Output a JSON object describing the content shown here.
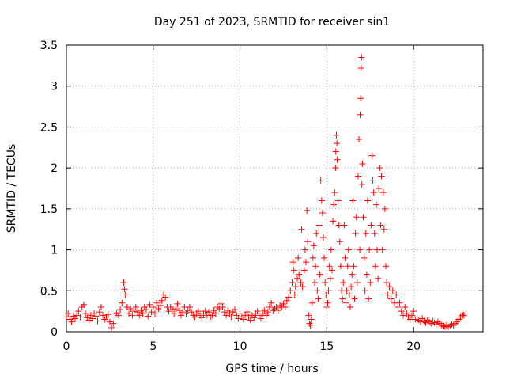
{
  "chart_data": {
    "type": "scatter",
    "title": "Day 251 of 2023, SRMTID for receiver sin1",
    "xlabel": "GPS time / hours",
    "ylabel": "SRMTID / TECUs",
    "xlim": [
      0,
      24
    ],
    "ylim": [
      0,
      3.5
    ],
    "xticks": [
      0,
      5,
      10,
      15,
      20
    ],
    "yticks": [
      0,
      0.5,
      1,
      1.5,
      2,
      2.5,
      3,
      3.5
    ],
    "xtick_labels": [
      "0",
      "5",
      "10",
      "15",
      "20"
    ],
    "ytick_labels": [
      "0",
      "0.5",
      "1",
      "1.5",
      "2",
      "2.5",
      "3",
      "3.5"
    ],
    "grid": true,
    "marker": "+",
    "color": "#ff0000",
    "series": [
      {
        "name": "sin1",
        "points": [
          [
            0.0,
            0.18
          ],
          [
            0.1,
            0.22
          ],
          [
            0.2,
            0.15
          ],
          [
            0.3,
            0.12
          ],
          [
            0.4,
            0.19
          ],
          [
            0.5,
            0.16
          ],
          [
            0.6,
            0.2
          ],
          [
            0.7,
            0.25
          ],
          [
            0.8,
            0.18
          ],
          [
            0.9,
            0.3
          ],
          [
            1.0,
            0.33
          ],
          [
            1.1,
            0.22
          ],
          [
            1.2,
            0.17
          ],
          [
            1.3,
            0.14
          ],
          [
            1.4,
            0.2
          ],
          [
            1.5,
            0.16
          ],
          [
            1.6,
            0.22
          ],
          [
            1.7,
            0.19
          ],
          [
            1.8,
            0.13
          ],
          [
            1.9,
            0.24
          ],
          [
            2.0,
            0.3
          ],
          [
            2.1,
            0.2
          ],
          [
            2.2,
            0.15
          ],
          [
            2.3,
            0.18
          ],
          [
            2.4,
            0.21
          ],
          [
            2.5,
            0.12
          ],
          [
            2.6,
            0.05
          ],
          [
            2.7,
            0.1
          ],
          [
            2.8,
            0.18
          ],
          [
            2.9,
            0.23
          ],
          [
            3.0,
            0.2
          ],
          [
            3.1,
            0.27
          ],
          [
            3.2,
            0.35
          ],
          [
            3.3,
            0.6
          ],
          [
            3.35,
            0.52
          ],
          [
            3.4,
            0.45
          ],
          [
            3.5,
            0.3
          ],
          [
            3.6,
            0.22
          ],
          [
            3.7,
            0.28
          ],
          [
            3.8,
            0.2
          ],
          [
            3.9,
            0.25
          ],
          [
            4.0,
            0.3
          ],
          [
            4.1,
            0.24
          ],
          [
            4.2,
            0.2
          ],
          [
            4.3,
            0.26
          ],
          [
            4.4,
            0.22
          ],
          [
            4.5,
            0.3
          ],
          [
            4.6,
            0.27
          ],
          [
            4.7,
            0.19
          ],
          [
            4.8,
            0.33
          ],
          [
            4.9,
            0.24
          ],
          [
            5.0,
            0.3
          ],
          [
            5.1,
            0.22
          ],
          [
            5.2,
            0.35
          ],
          [
            5.3,
            0.28
          ],
          [
            5.4,
            0.32
          ],
          [
            5.5,
            0.38
          ],
          [
            5.6,
            0.45
          ],
          [
            5.7,
            0.42
          ],
          [
            5.8,
            0.3
          ],
          [
            5.9,
            0.25
          ],
          [
            6.0,
            0.3
          ],
          [
            6.1,
            0.27
          ],
          [
            6.2,
            0.22
          ],
          [
            6.3,
            0.28
          ],
          [
            6.4,
            0.34
          ],
          [
            6.5,
            0.26
          ],
          [
            6.6,
            0.2
          ],
          [
            6.7,
            0.24
          ],
          [
            6.8,
            0.3
          ],
          [
            6.9,
            0.22
          ],
          [
            7.0,
            0.26
          ],
          [
            7.1,
            0.3
          ],
          [
            7.2,
            0.24
          ],
          [
            7.3,
            0.2
          ],
          [
            7.4,
            0.18
          ],
          [
            7.5,
            0.22
          ],
          [
            7.6,
            0.25
          ],
          [
            7.7,
            0.2
          ],
          [
            7.8,
            0.17
          ],
          [
            7.9,
            0.22
          ],
          [
            8.0,
            0.25
          ],
          [
            8.1,
            0.2
          ],
          [
            8.2,
            0.24
          ],
          [
            8.3,
            0.18
          ],
          [
            8.4,
            0.2
          ],
          [
            8.5,
            0.26
          ],
          [
            8.6,
            0.22
          ],
          [
            8.7,
            0.3
          ],
          [
            8.8,
            0.28
          ],
          [
            8.9,
            0.34
          ],
          [
            9.0,
            0.3
          ],
          [
            9.1,
            0.24
          ],
          [
            9.2,
            0.2
          ],
          [
            9.3,
            0.26
          ],
          [
            9.4,
            0.22
          ],
          [
            9.5,
            0.18
          ],
          [
            9.6,
            0.24
          ],
          [
            9.7,
            0.27
          ],
          [
            9.8,
            0.2
          ],
          [
            9.9,
            0.16
          ],
          [
            10.0,
            0.22
          ],
          [
            10.1,
            0.18
          ],
          [
            10.2,
            0.15
          ],
          [
            10.3,
            0.2
          ],
          [
            10.4,
            0.24
          ],
          [
            10.5,
            0.18
          ],
          [
            10.6,
            0.14
          ],
          [
            10.7,
            0.2
          ],
          [
            10.8,
            0.17
          ],
          [
            10.9,
            0.22
          ],
          [
            11.0,
            0.25
          ],
          [
            11.1,
            0.2
          ],
          [
            11.2,
            0.16
          ],
          [
            11.3,
            0.22
          ],
          [
            11.4,
            0.26
          ],
          [
            11.5,
            0.2
          ],
          [
            11.6,
            0.24
          ],
          [
            11.7,
            0.3
          ],
          [
            11.8,
            0.35
          ],
          [
            11.9,
            0.26
          ],
          [
            12.0,
            0.28
          ],
          [
            12.1,
            0.3
          ],
          [
            12.2,
            0.26
          ],
          [
            12.3,
            0.32
          ],
          [
            12.4,
            0.3
          ],
          [
            12.5,
            0.34
          ],
          [
            12.6,
            0.3
          ],
          [
            12.7,
            0.38
          ],
          [
            12.8,
            0.42
          ],
          [
            12.9,
            0.5
          ],
          [
            13.0,
            0.6
          ],
          [
            13.05,
            0.85
          ],
          [
            13.1,
            0.75
          ],
          [
            13.15,
            0.45
          ],
          [
            13.2,
            0.55
          ],
          [
            13.3,
            0.65
          ],
          [
            13.35,
            0.9
          ],
          [
            13.4,
            0.7
          ],
          [
            13.5,
            0.6
          ],
          [
            13.55,
            1.25
          ],
          [
            13.6,
            0.55
          ],
          [
            13.7,
            0.75
          ],
          [
            13.75,
            1.0
          ],
          [
            13.8,
            0.85
          ],
          [
            13.85,
            1.48
          ],
          [
            13.9,
            1.1
          ],
          [
            13.95,
            0.2
          ],
          [
            14.0,
            0.1
          ],
          [
            14.05,
            0.08
          ],
          [
            14.1,
            0.15
          ],
          [
            14.15,
            0.35
          ],
          [
            14.2,
            0.9
          ],
          [
            14.25,
            1.05
          ],
          [
            14.3,
            0.6
          ],
          [
            14.35,
            0.8
          ],
          [
            14.4,
            1.2
          ],
          [
            14.45,
            0.5
          ],
          [
            14.5,
            0.4
          ],
          [
            14.55,
            1.3
          ],
          [
            14.6,
            0.7
          ],
          [
            14.65,
            1.85
          ],
          [
            14.7,
            1.6
          ],
          [
            14.75,
            1.45
          ],
          [
            14.8,
            1.15
          ],
          [
            14.85,
            0.9
          ],
          [
            14.9,
            0.6
          ],
          [
            14.95,
            0.45
          ],
          [
            15.0,
            0.3
          ],
          [
            15.05,
            0.35
          ],
          [
            15.1,
            0.5
          ],
          [
            15.15,
            0.8
          ],
          [
            15.2,
            0.65
          ],
          [
            15.25,
            1.0
          ],
          [
            15.3,
            0.75
          ],
          [
            15.35,
            1.35
          ],
          [
            15.4,
            1.55
          ],
          [
            15.45,
            1.7
          ],
          [
            15.5,
            2.0
          ],
          [
            15.52,
            2.2
          ],
          [
            15.55,
            2.4
          ],
          [
            15.58,
            2.3
          ],
          [
            15.6,
            2.1
          ],
          [
            15.65,
            1.6
          ],
          [
            15.7,
            1.3
          ],
          [
            15.75,
            1.1
          ],
          [
            15.8,
            0.8
          ],
          [
            15.85,
            0.5
          ],
          [
            15.9,
            0.4
          ],
          [
            15.95,
            0.6
          ],
          [
            16.0,
            1.3
          ],
          [
            16.05,
            0.9
          ],
          [
            16.1,
            0.35
          ],
          [
            16.15,
            0.5
          ],
          [
            16.2,
            0.8
          ],
          [
            16.25,
            1.0
          ],
          [
            16.3,
            0.45
          ],
          [
            16.35,
            0.3
          ],
          [
            16.4,
            0.55
          ],
          [
            16.45,
            0.7
          ],
          [
            16.5,
            1.6
          ],
          [
            16.55,
            0.8
          ],
          [
            16.6,
            0.4
          ],
          [
            16.65,
            1.2
          ],
          [
            16.7,
            1.4
          ],
          [
            16.75,
            0.6
          ],
          [
            16.8,
            1.9
          ],
          [
            16.85,
            2.35
          ],
          [
            16.9,
            1.0
          ],
          [
            16.92,
            2.65
          ],
          [
            16.95,
            2.85
          ],
          [
            16.97,
            3.22
          ],
          [
            17.0,
            3.35
          ],
          [
            17.02,
            1.8
          ],
          [
            17.05,
            2.05
          ],
          [
            17.1,
            1.4
          ],
          [
            17.15,
            0.9
          ],
          [
            17.2,
            0.5
          ],
          [
            17.25,
            1.2
          ],
          [
            17.3,
            0.7
          ],
          [
            17.35,
            1.6
          ],
          [
            17.4,
            0.4
          ],
          [
            17.45,
            1.0
          ],
          [
            17.5,
            0.6
          ],
          [
            17.55,
            1.3
          ],
          [
            17.6,
            2.15
          ],
          [
            17.65,
            1.85
          ],
          [
            17.7,
            1.7
          ],
          [
            17.75,
            1.2
          ],
          [
            17.8,
            0.8
          ],
          [
            17.85,
            1.55
          ],
          [
            17.9,
            1.0
          ],
          [
            17.95,
            0.65
          ],
          [
            18.0,
            1.75
          ],
          [
            18.05,
            2.0
          ],
          [
            18.1,
            1.3
          ],
          [
            18.15,
            1.9
          ],
          [
            18.2,
            1.0
          ],
          [
            18.25,
            1.7
          ],
          [
            18.3,
            1.25
          ],
          [
            18.35,
            1.5
          ],
          [
            18.4,
            0.8
          ],
          [
            18.45,
            0.6
          ],
          [
            18.5,
            0.45
          ],
          [
            18.6,
            0.55
          ],
          [
            18.7,
            0.4
          ],
          [
            18.8,
            0.5
          ],
          [
            18.9,
            0.35
          ],
          [
            19.0,
            0.45
          ],
          [
            19.1,
            0.3
          ],
          [
            19.2,
            0.35
          ],
          [
            19.3,
            0.25
          ],
          [
            19.4,
            0.2
          ],
          [
            19.5,
            0.3
          ],
          [
            19.6,
            0.22
          ],
          [
            19.7,
            0.18
          ],
          [
            19.8,
            0.15
          ],
          [
            19.9,
            0.2
          ],
          [
            20.0,
            0.25
          ],
          [
            20.1,
            0.15
          ],
          [
            20.2,
            0.18
          ],
          [
            20.3,
            0.14
          ],
          [
            20.4,
            0.12
          ],
          [
            20.5,
            0.16
          ],
          [
            20.6,
            0.13
          ],
          [
            20.7,
            0.11
          ],
          [
            20.8,
            0.14
          ],
          [
            20.9,
            0.12
          ],
          [
            21.0,
            0.1
          ],
          [
            21.1,
            0.13
          ],
          [
            21.2,
            0.11
          ],
          [
            21.3,
            0.09
          ],
          [
            21.4,
            0.12
          ],
          [
            21.5,
            0.1
          ],
          [
            21.6,
            0.08
          ],
          [
            21.7,
            0.07
          ],
          [
            21.8,
            0.06
          ],
          [
            21.9,
            0.08
          ],
          [
            22.0,
            0.06
          ],
          [
            22.1,
            0.07
          ],
          [
            22.2,
            0.09
          ],
          [
            22.3,
            0.08
          ],
          [
            22.4,
            0.1
          ],
          [
            22.5,
            0.12
          ],
          [
            22.6,
            0.15
          ],
          [
            22.7,
            0.18
          ],
          [
            22.8,
            0.2
          ],
          [
            22.85,
            0.22
          ],
          [
            22.9,
            0.2
          ]
        ]
      }
    ]
  }
}
